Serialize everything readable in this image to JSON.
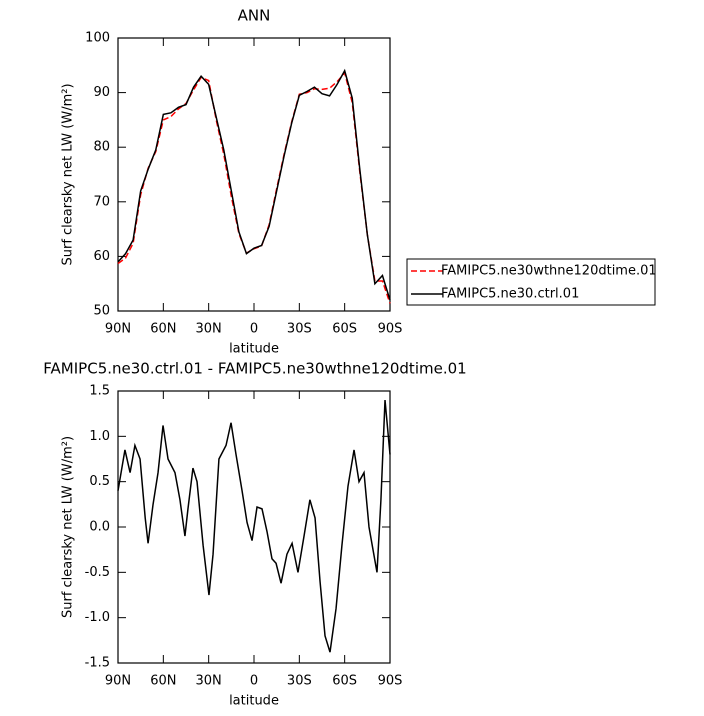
{
  "chart_data": [
    {
      "type": "line",
      "title": "ANN",
      "x_label": "latitude",
      "y_label": "Surf clearsky net LW (W/m²)",
      "x": [
        90,
        85,
        80,
        75,
        70,
        65,
        60,
        55,
        50,
        45,
        40,
        35,
        30,
        25,
        20,
        15,
        10,
        5,
        0,
        -5,
        -10,
        -15,
        -20,
        -25,
        -30,
        -35,
        -40,
        -45,
        -50,
        -55,
        -60,
        -65,
        -70,
        -75,
        -80,
        -85,
        -90
      ],
      "xlim": [
        90,
        -90
      ],
      "xticks": [
        {
          "value": 90,
          "label": "90N"
        },
        {
          "value": 60,
          "label": "60N"
        },
        {
          "value": 30,
          "label": "30N"
        },
        0,
        {
          "value": -30,
          "label": "30S"
        },
        {
          "value": -60,
          "label": "60S"
        },
        {
          "value": -90,
          "label": "90S"
        }
      ],
      "ylim": [
        50,
        100
      ],
      "yticks": [
        50,
        60,
        70,
        80,
        90,
        100
      ],
      "legend_position": "right",
      "series": [
        {
          "name": "FAMIPC5.ne30wthne120dtime.01",
          "color": "#ff0000",
          "line_style": "dashed",
          "values": [
            58.7,
            59.7,
            62.4,
            71.3,
            76.2,
            79.2,
            85,
            85.6,
            87,
            88,
            90.5,
            92.8,
            92.2,
            85,
            78.7,
            71,
            64.2,
            60.6,
            61.4,
            61.9,
            65.8,
            72.4,
            78.8,
            84.7,
            89.7,
            90,
            90.7,
            90.6,
            90.8,
            92,
            93.6,
            88.2,
            75.5,
            64,
            55.5,
            55.5,
            51.4
          ]
        },
        {
          "name": "FAMIPC5.ne30.ctrl.01",
          "color": "#000000",
          "line_style": "solid",
          "values": [
            59,
            60.5,
            63,
            72,
            76,
            79.5,
            86,
            86.3,
            87.3,
            87.8,
            91,
            93,
            91.5,
            85.5,
            79.5,
            72,
            64.5,
            60.5,
            61.5,
            62,
            65.5,
            72,
            78.5,
            84.5,
            89.5,
            90.2,
            91,
            89.8,
            89.4,
            91.5,
            94,
            89,
            76,
            64,
            55,
            56.5,
            52
          ]
        }
      ]
    },
    {
      "type": "line",
      "title": "FAMIPC5.ne30.ctrl.01 - FAMIPC5.ne30wthne120dtime.01",
      "x_label": "latitude",
      "y_label": "Surf clearsky net LW (W/m²)",
      "x": [
        90,
        85.4,
        82,
        78.8,
        75.4,
        72,
        70.1,
        66.8,
        63.5,
        60.2,
        56.9,
        52.3,
        49,
        45.7,
        43.7,
        40.4,
        37.7,
        33.7,
        29.8,
        27.1,
        23.2,
        18.5,
        15.2,
        11.9,
        7.9,
        4.6,
        1.3,
        -2,
        -5.3,
        -8.6,
        -11.9,
        -14.6,
        -17.9,
        -21.8,
        -25.2,
        -29.1,
        -33.1,
        -37,
        -40.4,
        -43.7,
        -47,
        -50.3,
        -54.3,
        -58.2,
        -62.2,
        -66.2,
        -69.5,
        -72.8,
        -76.1,
        -81.4,
        -84,
        -86.7,
        -90
      ],
      "values": [
        0.4,
        0.85,
        0.6,
        0.9,
        0.75,
        0.1,
        -0.18,
        0.25,
        0.6,
        1.12,
        0.75,
        0.6,
        0.3,
        -0.1,
        0.2,
        0.65,
        0.5,
        -0.2,
        -0.75,
        -0.3,
        0.75,
        0.9,
        1.15,
        0.8,
        0.4,
        0.05,
        -0.15,
        0.22,
        0.2,
        -0.05,
        -0.35,
        -0.4,
        -0.62,
        -0.3,
        -0.18,
        -0.5,
        -0.1,
        0.3,
        0.1,
        -0.6,
        -1.2,
        -1.38,
        -0.9,
        -0.2,
        0.45,
        0.85,
        0.5,
        0.6,
        0,
        -0.5,
        0.3,
        1.4,
        0.8
      ],
      "color": "#000000",
      "xlim": [
        90,
        -90
      ],
      "xticks": [
        {
          "value": 90,
          "label": "90N"
        },
        {
          "value": 60,
          "label": "60N"
        },
        {
          "value": 30,
          "label": "30N"
        },
        0,
        {
          "value": -30,
          "label": "30S"
        },
        {
          "value": -60,
          "label": "60S"
        },
        {
          "value": -90,
          "label": "90S"
        }
      ],
      "ylim": [
        -1.5,
        1.5
      ],
      "yticks": [
        -1.5,
        {
          "value": -1,
          "label": "-1.0"
        },
        -0.5,
        {
          "value": 0,
          "label": "0.0"
        },
        0.5,
        {
          "value": 1,
          "label": "1.0"
        },
        1.5
      ]
    }
  ]
}
